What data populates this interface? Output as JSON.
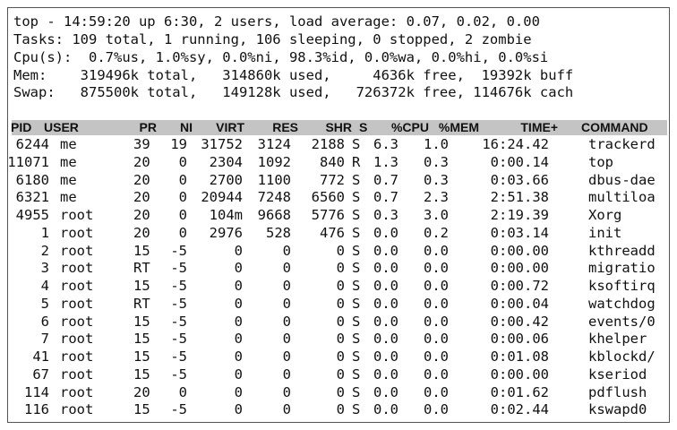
{
  "summary": [
    "top - 14:59:20 up 6:30, 2 users, load average: 0.07, 0.02, 0.00",
    "Tasks: 109 total, 1 running, 106 sleeping, 0 stopped, 2 zombie",
    "Cpu(s):  0.7%us, 1.0%sy, 0.0%ni, 98.3%id, 0.0%wa, 0.0%hi, 0.0%si",
    "Mem:    319496k total,   314860k used,     4636k free,  19392k buff",
    "Swap:   875500k total,   149128k used,   726372k free, 114676k cach"
  ],
  "columns": [
    "PID",
    "USER",
    "PR",
    "NI",
    "VIRT",
    "RES",
    "SHR",
    "S",
    "%CPU",
    "%MEM",
    "TIME+",
    "COMMAND"
  ],
  "processes": [
    [
      "6244",
      "me",
      "39",
      "19",
      "31752",
      "3124",
      "2188",
      "S",
      "6.3",
      "1.0",
      "16:24.42",
      "trackerd"
    ],
    [
      "11071",
      "me",
      "20",
      "0",
      "2304",
      "1092",
      "840",
      "R",
      "1.3",
      "0.3",
      "0:00.14",
      "top"
    ],
    [
      "6180",
      "me",
      "20",
      "0",
      "2700",
      "1100",
      "772",
      "S",
      "0.7",
      "0.3",
      "0:03.66",
      "dbus-dae"
    ],
    [
      "6321",
      "me",
      "20",
      "0",
      "20944",
      "7248",
      "6560",
      "S",
      "0.7",
      "2.3",
      "2:51.38",
      "multiloa"
    ],
    [
      "4955",
      "root",
      "20",
      "0",
      "104m",
      "9668",
      "5776",
      "S",
      "0.3",
      "3.0",
      "2:19.39",
      "Xorg"
    ],
    [
      "1",
      "root",
      "20",
      "0",
      "2976",
      "528",
      "476",
      "S",
      "0.0",
      "0.2",
      "0:03.14",
      "init"
    ],
    [
      "2",
      "root",
      "15",
      "-5",
      "0",
      "0",
      "0",
      "S",
      "0.0",
      "0.0",
      "0:00.00",
      "kthreadd"
    ],
    [
      "3",
      "root",
      "RT",
      "-5",
      "0",
      "0",
      "0",
      "S",
      "0.0",
      "0.0",
      "0:00.00",
      "migratio"
    ],
    [
      "4",
      "root",
      "15",
      "-5",
      "0",
      "0",
      "0",
      "S",
      "0.0",
      "0.0",
      "0:00.72",
      "ksoftirq"
    ],
    [
      "5",
      "root",
      "RT",
      "-5",
      "0",
      "0",
      "0",
      "S",
      "0.0",
      "0.0",
      "0:00.04",
      "watchdog"
    ],
    [
      "6",
      "root",
      "15",
      "-5",
      "0",
      "0",
      "0",
      "S",
      "0.0",
      "0.0",
      "0:00.42",
      "events/0"
    ],
    [
      "7",
      "root",
      "15",
      "-5",
      "0",
      "0",
      "0",
      "S",
      "0.0",
      "0.0",
      "0:00.06",
      "khelper"
    ],
    [
      "41",
      "root",
      "15",
      "-5",
      "0",
      "0",
      "0",
      "S",
      "0.0",
      "0.0",
      "0:01.08",
      "kblockd/"
    ],
    [
      "67",
      "root",
      "15",
      "-5",
      "0",
      "0",
      "0",
      "S",
      "0.0",
      "0.0",
      "0:00.00",
      "kseriod"
    ],
    [
      "114",
      "root",
      "20",
      "0",
      "0",
      "0",
      "0",
      "S",
      "0.0",
      "0.0",
      "0:01.62",
      "pdflush"
    ],
    [
      "116",
      "root",
      "15",
      "-5",
      "0",
      "0",
      "0",
      "S",
      "0.0",
      "0.0",
      "0:02.44",
      "kswapd0"
    ]
  ]
}
